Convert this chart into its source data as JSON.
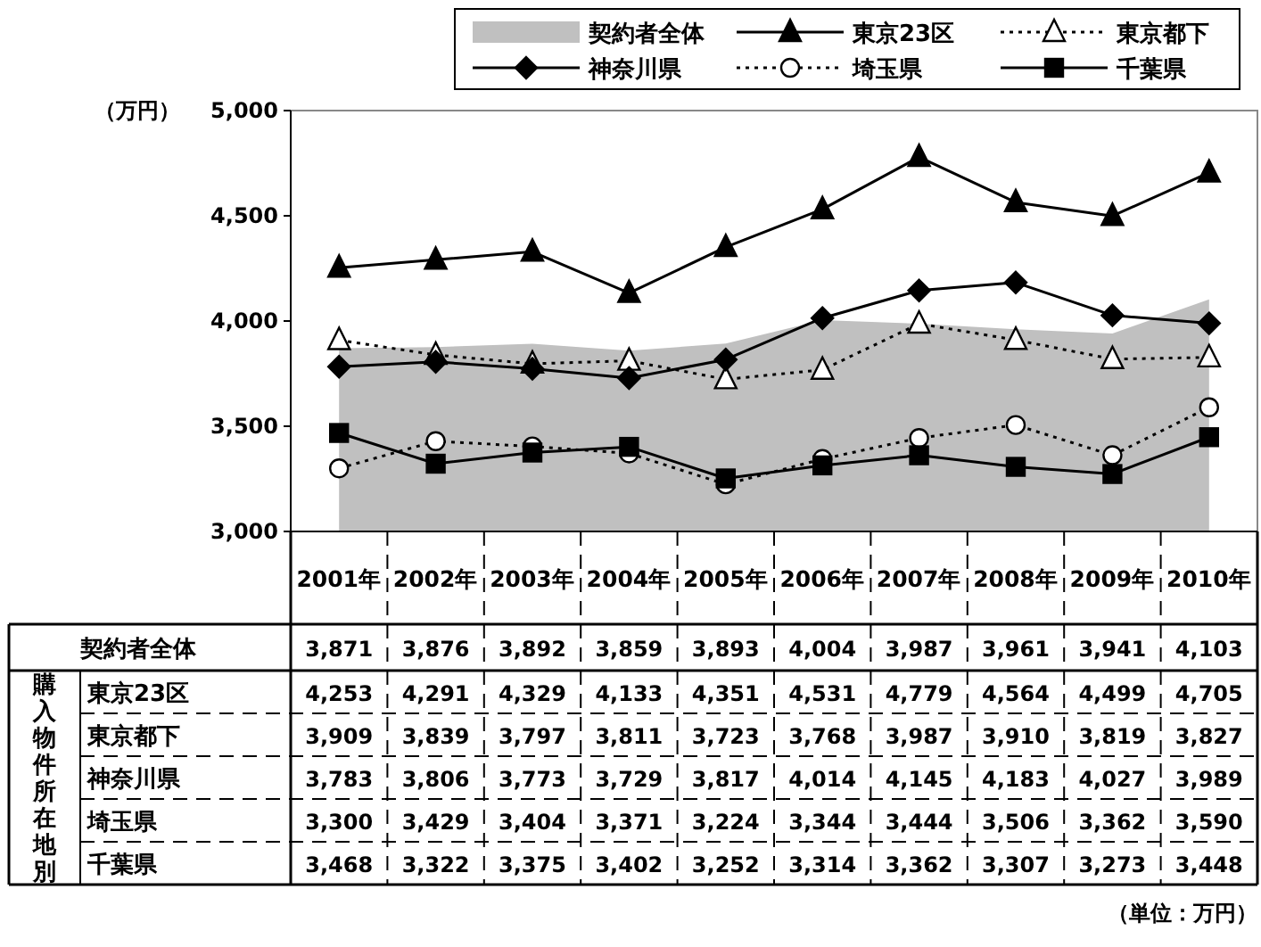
{
  "chart_data": {
    "type": "line",
    "ylabel": "（万円）",
    "categories": [
      "2001年",
      "2002年",
      "2003年",
      "2004年",
      "2005年",
      "2006年",
      "2007年",
      "2008年",
      "2009年",
      "2010年"
    ],
    "ylim": [
      3000,
      5000
    ],
    "yticks": [
      {
        "value": 3000,
        "label": "3,000"
      },
      {
        "value": 3500,
        "label": "3,500"
      },
      {
        "value": 4000,
        "label": "4,000"
      },
      {
        "value": 4500,
        "label": "4,500"
      },
      {
        "value": 5000,
        "label": "5,000"
      }
    ],
    "grid": false,
    "legend": "top",
    "series": [
      {
        "name": "契約者全体",
        "type": "area",
        "color": "#c0c0c0",
        "values": [
          3871,
          3876,
          3892,
          3859,
          3893,
          4004,
          3987,
          3961,
          3941,
          4103
        ],
        "value_labels": [
          "3,871",
          "3,876",
          "3,892",
          "3,859",
          "3,893",
          "4,004",
          "3,987",
          "3,961",
          "3,941",
          "4,103"
        ]
      },
      {
        "name": "東京23区",
        "color": "#000000",
        "marker": "triangle",
        "line_style": "solid",
        "values": [
          4253,
          4291,
          4329,
          4133,
          4351,
          4531,
          4779,
          4564,
          4499,
          4705
        ],
        "value_labels": [
          "4,253",
          "4,291",
          "4,329",
          "4,133",
          "4,351",
          "4,531",
          "4,779",
          "4,564",
          "4,499",
          "4,705"
        ]
      },
      {
        "name": "東京都下",
        "color": "#000000",
        "marker": "triangle",
        "line_style": "dotted",
        "values": [
          3909,
          3839,
          3797,
          3811,
          3723,
          3768,
          3987,
          3910,
          3819,
          3827
        ],
        "value_labels": [
          "3,909",
          "3,839",
          "3,797",
          "3,811",
          "3,723",
          "3,768",
          "3,987",
          "3,910",
          "3,819",
          "3,827"
        ]
      },
      {
        "name": "神奈川県",
        "color": "#000000",
        "marker": "diamond",
        "line_style": "solid",
        "values": [
          3783,
          3806,
          3773,
          3729,
          3817,
          4014,
          4145,
          4183,
          4027,
          3989
        ],
        "value_labels": [
          "3,783",
          "3,806",
          "3,773",
          "3,729",
          "3,817",
          "4,014",
          "4,145",
          "4,183",
          "4,027",
          "3,989"
        ]
      },
      {
        "name": "埼玉県",
        "color": "#000000",
        "marker": "circle",
        "line_style": "dotted",
        "values": [
          3300,
          3429,
          3404,
          3371,
          3224,
          3344,
          3444,
          3506,
          3362,
          3590
        ],
        "value_labels": [
          "3,300",
          "3,429",
          "3,404",
          "3,371",
          "3,224",
          "3,344",
          "3,444",
          "3,506",
          "3,362",
          "3,590"
        ]
      },
      {
        "name": "千葉県",
        "color": "#000000",
        "marker": "square",
        "line_style": "solid",
        "values": [
          3468,
          3322,
          3375,
          3402,
          3252,
          3314,
          3362,
          3307,
          3273,
          3448
        ],
        "value_labels": [
          "3,468",
          "3,322",
          "3,375",
          "3,402",
          "3,252",
          "3,314",
          "3,362",
          "3,307",
          "3,273",
          "3,448"
        ]
      }
    ],
    "annotations": [
      "購入物件所在地別",
      "（単位：万円）"
    ]
  }
}
